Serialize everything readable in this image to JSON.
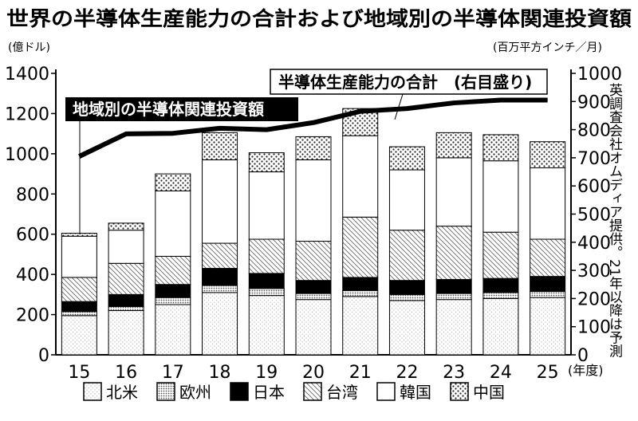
{
  "chart_data": {
    "type": "bar",
    "title": "世界の半導体生産能力の合計および地域別の半導体関連投資額",
    "left_unit": "(億ドル)",
    "right_unit": "(百万平方インチ／月)",
    "x_unit": "(年度)",
    "source_note": "英調査会社オムディア提供。21年以降は予測",
    "bar_label": "地域別の半導体関連投資額",
    "line_label": "半導体生産能力の合計　(右目盛り)",
    "categories": [
      "15",
      "16",
      "17",
      "18",
      "19",
      "20",
      "21",
      "22",
      "23",
      "24",
      "25"
    ],
    "ylim_left": [
      0,
      1400
    ],
    "yticks_left": [
      0,
      200,
      400,
      600,
      800,
      1000,
      1200,
      1400
    ],
    "ylim_right": [
      0,
      1000
    ],
    "yticks_right": [
      0,
      100,
      200,
      300,
      400,
      500,
      600,
      700,
      800,
      900,
      1000
    ],
    "stack_series": [
      {
        "name": "北米",
        "pattern": "light",
        "values": [
          195,
          220,
          250,
          310,
          295,
          275,
          290,
          270,
          275,
          280,
          285
        ]
      },
      {
        "name": "欧州",
        "pattern": "dots-dense",
        "values": [
          20,
          20,
          35,
          35,
          35,
          30,
          30,
          30,
          30,
          30,
          30
        ]
      },
      {
        "name": "日本",
        "pattern": "solid",
        "values": [
          50,
          60,
          65,
          85,
          75,
          65,
          65,
          70,
          70,
          70,
          75
        ]
      },
      {
        "name": "台湾",
        "pattern": "diagonal",
        "values": [
          120,
          155,
          140,
          125,
          170,
          195,
          300,
          250,
          265,
          230,
          185
        ]
      },
      {
        "name": "韓国",
        "pattern": "white",
        "values": [
          205,
          165,
          325,
          415,
          335,
          405,
          405,
          300,
          340,
          355,
          355
        ]
      },
      {
        "name": "中国",
        "pattern": "dots",
        "values": [
          15,
          35,
          85,
          135,
          95,
          115,
          135,
          115,
          125,
          130,
          130
        ]
      }
    ],
    "line_series": {
      "name": "半導体生産能力の合計",
      "axis": "right",
      "values": [
        705,
        785,
        787,
        805,
        800,
        825,
        865,
        875,
        895,
        905,
        905
      ]
    }
  }
}
